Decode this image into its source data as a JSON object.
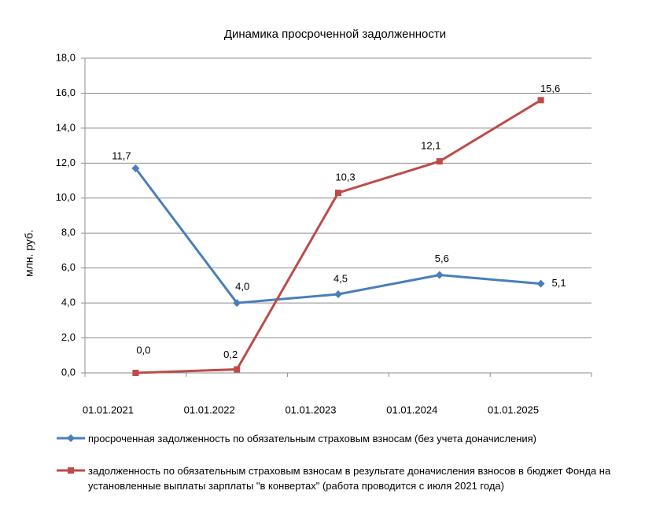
{
  "chart_data": {
    "type": "line",
    "title": "Динамика просроченной задолженности",
    "y_label": "млн. руб.",
    "categories": [
      "01.01.2021",
      "01.01.2022",
      "01.01.2023",
      "01.01.2024",
      "01.01.2025"
    ],
    "series": [
      {
        "name": "просроченная задолженность по обязательным страховым взносам (без учета доначисления)",
        "color": "#4a7ebb",
        "marker": "diamond",
        "values": [
          11.7,
          4.0,
          4.5,
          5.6,
          5.1
        ],
        "value_labels": [
          "11,7",
          "4,0",
          "4,5",
          "5,6",
          "5,1"
        ]
      },
      {
        "name": "задолженность по обязательным страховым взносам в результате доначисления взносов в бюджет Фонда на установленные выплаты зарплаты \"в конвертах\" (работа проводится с июля 2021 года)",
        "color": "#be4b48",
        "marker": "square",
        "values": [
          0.0,
          0.2,
          10.3,
          12.1,
          15.6
        ],
        "value_labels": [
          "0,0",
          "0,2",
          "10,3",
          "12,1",
          "15,6"
        ]
      }
    ],
    "ylim": [
      0,
      18
    ],
    "yticks": [
      {
        "value": 0,
        "label": "0,0"
      },
      {
        "value": 2,
        "label": "2,0"
      },
      {
        "value": 4,
        "label": "4,0"
      },
      {
        "value": 6,
        "label": "6,0"
      },
      {
        "value": 8,
        "label": "8,0"
      },
      {
        "value": 10,
        "label": "10,0"
      },
      {
        "value": 12,
        "label": "12,0"
      },
      {
        "value": 14,
        "label": "14,0"
      },
      {
        "value": 16,
        "label": "16,0"
      },
      {
        "value": 18,
        "label": "18,0"
      }
    ],
    "grid": true,
    "legend": "bottom"
  }
}
